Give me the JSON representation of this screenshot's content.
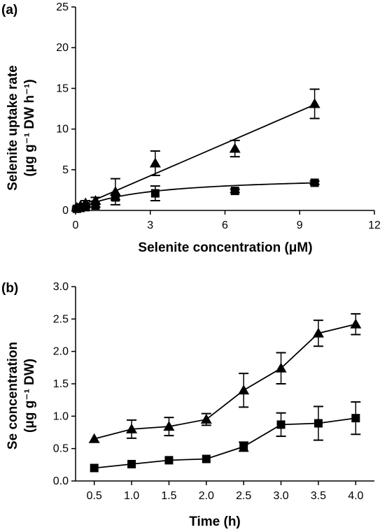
{
  "chart_data": [
    {
      "panel_label": "(a)",
      "type": "scatter",
      "xlabel": "Selenite concentration (μM)",
      "ylabel_line1": "Selenite uptake rate",
      "ylabel_line2": "(μg g⁻¹ DW h⁻¹)",
      "xlim": [
        0,
        12
      ],
      "ylim": [
        0,
        25
      ],
      "xticks": [
        0,
        3,
        6,
        9,
        12
      ],
      "yticks": [
        0,
        5,
        10,
        15,
        20,
        25
      ],
      "grid": false,
      "series": [
        {
          "marker": "triangle",
          "x": [
            0.05,
            0.2,
            0.4,
            0.8,
            1.6,
            3.2,
            6.4,
            9.6
          ],
          "y": [
            0.35,
            0.6,
            0.9,
            1.2,
            2.3,
            5.8,
            7.6,
            13.1
          ],
          "err": [
            0.1,
            0.2,
            0.3,
            0.4,
            1.6,
            1.5,
            1.0,
            1.8
          ],
          "fit": "linear",
          "fit_line": {
            "x": [
              0.05,
              9.6
            ],
            "y": [
              0.35,
              13.0
            ]
          }
        },
        {
          "marker": "square",
          "x": [
            0.05,
            0.2,
            0.4,
            0.8,
            1.6,
            3.2,
            6.4,
            9.6
          ],
          "y": [
            0.2,
            0.3,
            0.4,
            0.6,
            1.6,
            2.1,
            2.4,
            3.4
          ],
          "err": [
            0.05,
            0.1,
            0.1,
            0.2,
            0.3,
            0.9,
            0.2,
            0.2
          ],
          "fit": "saturation"
        }
      ]
    },
    {
      "panel_label": "(b)",
      "type": "line",
      "xlabel": "Time (h)",
      "ylabel_line1": "Se concentration",
      "ylabel_line2": "(μg g⁻¹ DW)",
      "xlim": [
        0.25,
        4.25
      ],
      "ylim": [
        0,
        3
      ],
      "xticks": [
        "0.5",
        "1.0",
        "1.5",
        "2.0",
        "2.5",
        "3.0",
        "3.5",
        "4.0"
      ],
      "yticks": [
        "0.0",
        "0.5",
        "1.0",
        "1.5",
        "2.0",
        "2.5",
        "3.0"
      ],
      "grid": false,
      "series": [
        {
          "marker": "triangle",
          "x": [
            0.5,
            1.0,
            1.5,
            2.0,
            2.5,
            3.0,
            3.5,
            4.0
          ],
          "y": [
            0.65,
            0.8,
            0.84,
            0.95,
            1.4,
            1.74,
            2.28,
            2.42
          ],
          "err": [
            0.05,
            0.14,
            0.14,
            0.09,
            0.26,
            0.24,
            0.2,
            0.16
          ]
        },
        {
          "marker": "square",
          "x": [
            0.5,
            1.0,
            1.5,
            2.0,
            2.5,
            3.0,
            3.5,
            4.0
          ],
          "y": [
            0.2,
            0.26,
            0.32,
            0.34,
            0.53,
            0.87,
            0.89,
            0.97
          ],
          "err": [
            0.02,
            0.03,
            0.03,
            0.03,
            0.07,
            0.18,
            0.26,
            0.25
          ]
        }
      ]
    }
  ]
}
